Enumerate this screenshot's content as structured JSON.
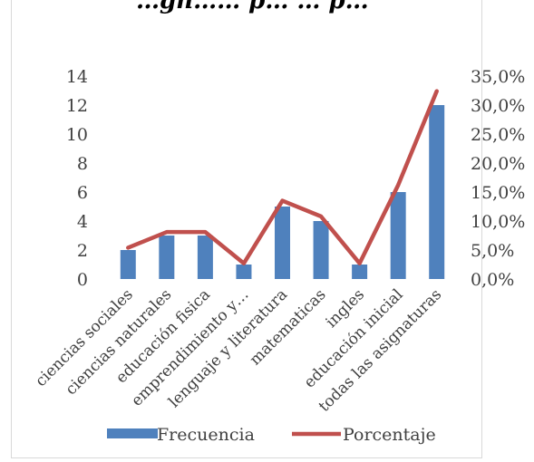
{
  "chart_data": {
    "type": "bar",
    "title": "…gn…… p… … p…",
    "categories": [
      "ciencias sociales",
      "ciencias naturales",
      "educación fisica",
      "emprendimiento y…",
      "lenguaje y literatura",
      "matematicas",
      "ingles",
      "educación inicial",
      "todas las asignaturas"
    ],
    "series": [
      {
        "name": "Frecuencia",
        "type": "bar",
        "axis": "left",
        "values": [
          2,
          3,
          3,
          1,
          5,
          4,
          1,
          6,
          12
        ]
      },
      {
        "name": "Porcentaje",
        "type": "line",
        "axis": "right",
        "values": [
          5.4,
          8.1,
          8.1,
          2.7,
          13.5,
          10.8,
          2.7,
          16.2,
          32.4
        ]
      }
    ],
    "y_left": {
      "min": 0,
      "max": 14,
      "ticks": [
        "0",
        "2",
        "4",
        "6",
        "8",
        "10",
        "12",
        "14"
      ]
    },
    "y_right": {
      "min": 0,
      "max": 35,
      "ticks": [
        "0,0%",
        "5,0%",
        "10,0%",
        "15,0%",
        "20,0%",
        "25,0%",
        "30,0%",
        "35,0%"
      ]
    },
    "legend_position": "bottom",
    "grid": false,
    "colors": {
      "bar": "#4f81bd",
      "line": "#c0504d",
      "text": "#404040"
    }
  }
}
